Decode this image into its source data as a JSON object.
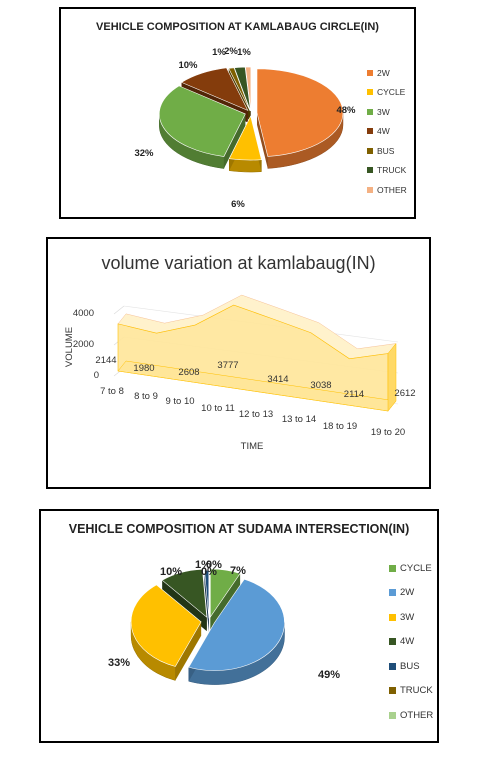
{
  "chart_data": [
    {
      "type": "pie",
      "title": "VEHICLE COMPOSITION AT KAMLABAUG CIRCLE(IN)",
      "categories": [
        "2W",
        "CYCLE",
        "3W",
        "4W",
        "BUS",
        "TRUCK",
        "OTHER"
      ],
      "values": [
        48,
        6,
        32,
        10,
        1,
        2,
        1
      ],
      "labels": [
        "48%",
        "6%",
        "32%",
        "10%",
        "1%",
        "2%",
        "1%"
      ],
      "colors": [
        "#ED7D31",
        "#FFC000",
        "#70AD47",
        "#843C0C",
        "#7F6000",
        "#375623",
        "#F4B183"
      ],
      "legend_position": "right"
    },
    {
      "type": "area",
      "title": "volume variation at kamlabaug(IN)",
      "xlabel": "TIME",
      "ylabel": "VOLUME",
      "categories": [
        "7 to 8",
        "8 to 9",
        "9 to 10",
        "10 to 11",
        "12 to 13",
        "13 to 14",
        "18 to 19",
        "19 to 20"
      ],
      "values": [
        2144,
        1980,
        2608,
        3777,
        3414,
        3038,
        2114,
        2612
      ],
      "yticks": [
        "0",
        "2000",
        "4000"
      ],
      "ylim": [
        0,
        4000
      ],
      "color": "#FFE699"
    },
    {
      "type": "pie",
      "title": "VEHICLE COMPOSITION AT SUDAMA INTERSECTION(IN)",
      "categories": [
        "CYCLE",
        "2W",
        "3W",
        "4W",
        "BUS",
        "TRUCK",
        "OTHER"
      ],
      "values": [
        7,
        49,
        33,
        10,
        1,
        0,
        0
      ],
      "labels": [
        "7%",
        "49%",
        "33%",
        "10%",
        "1%",
        "0%",
        "0%"
      ],
      "colors": [
        "#70AD47",
        "#5B9BD5",
        "#FFC000",
        "#375623",
        "#1F4E79",
        "#7F6000",
        "#A9D18E"
      ],
      "legend_position": "right"
    }
  ]
}
